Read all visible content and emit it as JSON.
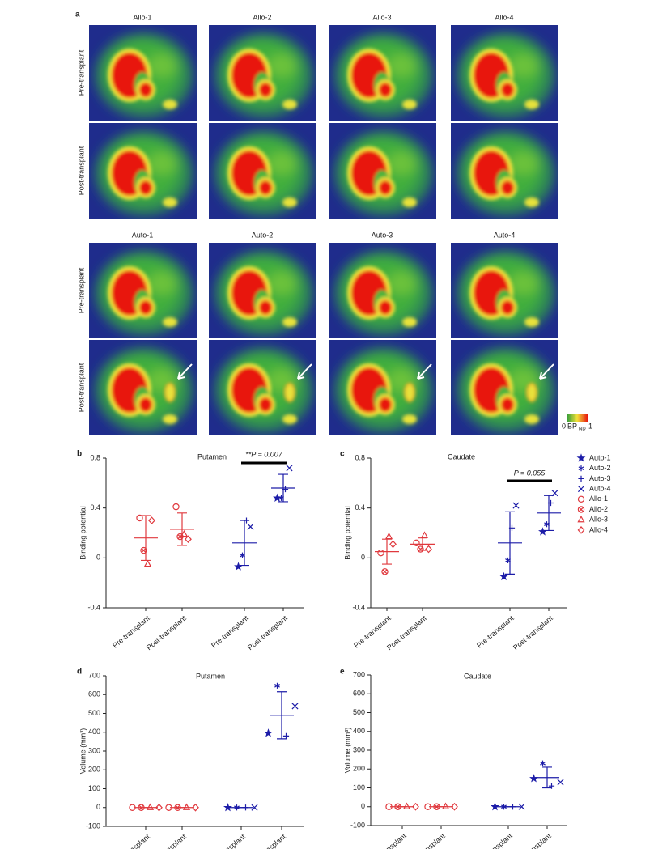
{
  "panel_a": {
    "label": "a",
    "allo_titles": [
      "Allo-1",
      "Allo-2",
      "Allo-3",
      "Allo-4"
    ],
    "auto_titles": [
      "Auto-1",
      "Auto-2",
      "Auto-3",
      "Auto-4"
    ],
    "row_labels": [
      "Pre-transplant",
      "Post-transplant"
    ],
    "colorbar": {
      "min": "0",
      "label": "BP",
      "sub": "ND",
      "max": "1"
    }
  },
  "chart_data": [
    {
      "type": "scatter",
      "panel": "b",
      "title": "Putamen",
      "ylabel": "Binding potential",
      "categories": [
        "Pre-transplant",
        "Post-transplant",
        "Pre-transplant",
        "Post-transplant"
      ],
      "ylim": [
        -0.4,
        0.8
      ],
      "yticks": [
        -0.4,
        0,
        0.4,
        0.8
      ],
      "annotation": "**P = 0.007",
      "series": [
        {
          "name": "Auto-1",
          "marker": "star",
          "color": "#1c1ca8",
          "values": [
            null,
            null,
            -0.07,
            0.48
          ]
        },
        {
          "name": "Auto-2",
          "marker": "asterisk",
          "color": "#1c1ca8",
          "values": [
            null,
            null,
            0.02,
            0.48
          ]
        },
        {
          "name": "Auto-3",
          "marker": "plus",
          "color": "#1c1ca8",
          "values": [
            null,
            null,
            0.3,
            0.55
          ]
        },
        {
          "name": "Auto-4",
          "marker": "cross",
          "color": "#1c1ca8",
          "values": [
            null,
            null,
            0.25,
            0.72
          ]
        },
        {
          "name": "Allo-1",
          "marker": "circle",
          "color": "#e0393e",
          "values": [
            0.32,
            0.41,
            null,
            null
          ]
        },
        {
          "name": "Allo-2",
          "marker": "circle-x",
          "color": "#e0393e",
          "values": [
            0.06,
            0.17,
            null,
            null
          ]
        },
        {
          "name": "Allo-3",
          "marker": "triangle",
          "color": "#e0393e",
          "values": [
            -0.05,
            0.19,
            null,
            null
          ]
        },
        {
          "name": "Allo-4",
          "marker": "diamond",
          "color": "#e0393e",
          "values": [
            0.3,
            0.15,
            null,
            null
          ]
        }
      ],
      "mean": [
        0.16,
        0.23,
        0.12,
        0.56
      ],
      "sd": [
        0.18,
        0.13,
        0.18,
        0.11
      ]
    },
    {
      "type": "scatter",
      "panel": "c",
      "title": "Caudate",
      "ylabel": "Binding potential",
      "categories": [
        "Pre-transplant",
        "Post-transplant",
        "Pre-transplant",
        "Post-transplant"
      ],
      "ylim": [
        -0.4,
        0.8
      ],
      "yticks": [
        -0.4,
        0,
        0.4,
        0.8
      ],
      "annotation": "P = 0.055",
      "legend": "right",
      "series": [
        {
          "name": "Auto-1",
          "marker": "star",
          "color": "#1c1ca8",
          "values": [
            null,
            null,
            -0.15,
            0.21
          ]
        },
        {
          "name": "Auto-2",
          "marker": "asterisk",
          "color": "#1c1ca8",
          "values": [
            null,
            null,
            -0.02,
            0.27
          ]
        },
        {
          "name": "Auto-3",
          "marker": "plus",
          "color": "#1c1ca8",
          "values": [
            null,
            null,
            0.24,
            0.44
          ]
        },
        {
          "name": "Auto-4",
          "marker": "cross",
          "color": "#1c1ca8",
          "values": [
            null,
            null,
            0.42,
            0.52
          ]
        },
        {
          "name": "Allo-1",
          "marker": "circle",
          "color": "#e0393e",
          "values": [
            0.04,
            0.12,
            null,
            null
          ]
        },
        {
          "name": "Allo-2",
          "marker": "circle-x",
          "color": "#e0393e",
          "values": [
            -0.11,
            0.07,
            null,
            null
          ]
        },
        {
          "name": "Allo-3",
          "marker": "triangle",
          "color": "#e0393e",
          "values": [
            0.17,
            0.18,
            null,
            null
          ]
        },
        {
          "name": "Allo-4",
          "marker": "diamond",
          "color": "#e0393e",
          "values": [
            0.11,
            0.07,
            null,
            null
          ]
        }
      ],
      "mean": [
        0.05,
        0.11,
        0.12,
        0.36
      ],
      "sd": [
        0.1,
        0.05,
        0.25,
        0.14
      ]
    },
    {
      "type": "scatter",
      "panel": "d",
      "title": "Putamen",
      "ylabel": "Volume (mm³)",
      "categories": [
        "Pre-transplant",
        "Post-transplant",
        "Pre-transplant",
        "Post-transplant"
      ],
      "ylim": [
        -100,
        700
      ],
      "yticks": [
        -100,
        0,
        100,
        200,
        300,
        400,
        500,
        600,
        700
      ],
      "series": [
        {
          "name": "Auto-1",
          "marker": "star",
          "color": "#1c1ca8",
          "values": [
            null,
            null,
            0,
            395
          ]
        },
        {
          "name": "Auto-2",
          "marker": "asterisk",
          "color": "#1c1ca8",
          "values": [
            null,
            null,
            0,
            647
          ]
        },
        {
          "name": "Auto-3",
          "marker": "plus",
          "color": "#1c1ca8",
          "values": [
            null,
            null,
            0,
            380
          ]
        },
        {
          "name": "Auto-4",
          "marker": "cross",
          "color": "#1c1ca8",
          "values": [
            null,
            null,
            0,
            539
          ]
        },
        {
          "name": "Allo-1",
          "marker": "circle",
          "color": "#e0393e",
          "values": [
            0,
            0,
            null,
            null
          ]
        },
        {
          "name": "Allo-2",
          "marker": "circle-x",
          "color": "#e0393e",
          "values": [
            0,
            0,
            null,
            null
          ]
        },
        {
          "name": "Allo-3",
          "marker": "triangle",
          "color": "#e0393e",
          "values": [
            0,
            0,
            null,
            null
          ]
        },
        {
          "name": "Allo-4",
          "marker": "diamond",
          "color": "#e0393e",
          "values": [
            0,
            0,
            null,
            null
          ]
        }
      ],
      "mean": [
        0,
        0,
        0,
        490
      ],
      "sd": [
        0,
        0,
        0,
        125
      ]
    },
    {
      "type": "scatter",
      "panel": "e",
      "title": "Caudate",
      "ylabel": "Volume (mm³)",
      "categories": [
        "Pre-transplant",
        "Post-transplant",
        "Pre-transplant",
        "Post-transplant"
      ],
      "ylim": [
        -100,
        700
      ],
      "yticks": [
        -100,
        0,
        100,
        200,
        300,
        400,
        500,
        600,
        700
      ],
      "series": [
        {
          "name": "Auto-1",
          "marker": "star",
          "color": "#1c1ca8",
          "values": [
            null,
            null,
            0,
            150
          ]
        },
        {
          "name": "Auto-2",
          "marker": "asterisk",
          "color": "#1c1ca8",
          "values": [
            null,
            null,
            0,
            230
          ]
        },
        {
          "name": "Auto-3",
          "marker": "plus",
          "color": "#1c1ca8",
          "values": [
            null,
            null,
            0,
            110
          ]
        },
        {
          "name": "Auto-4",
          "marker": "cross",
          "color": "#1c1ca8",
          "values": [
            null,
            null,
            0,
            130
          ]
        },
        {
          "name": "Allo-1",
          "marker": "circle",
          "color": "#e0393e",
          "values": [
            0,
            0,
            null,
            null
          ]
        },
        {
          "name": "Allo-2",
          "marker": "circle-x",
          "color": "#e0393e",
          "values": [
            0,
            0,
            null,
            null
          ]
        },
        {
          "name": "Allo-3",
          "marker": "triangle",
          "color": "#e0393e",
          "values": [
            0,
            0,
            null,
            null
          ]
        },
        {
          "name": "Allo-4",
          "marker": "diamond",
          "color": "#e0393e",
          "values": [
            0,
            0,
            null,
            null
          ]
        }
      ],
      "mean": [
        0,
        0,
        0,
        155
      ],
      "sd": [
        0,
        0,
        0,
        55
      ]
    }
  ]
}
